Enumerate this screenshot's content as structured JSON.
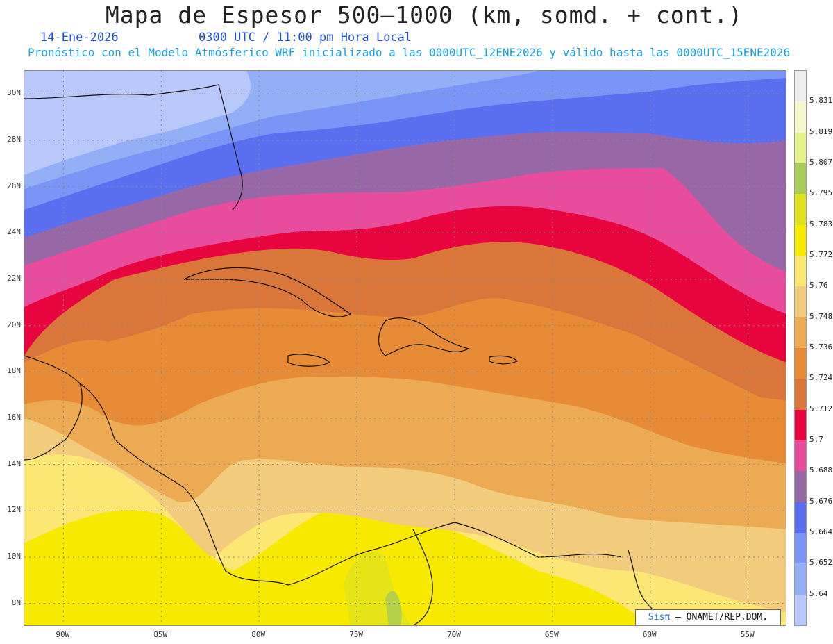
{
  "header": {
    "title": "Mapa de Espesor 500—1000 (km, somd. + cont.)",
    "date": "14-Ene-2026",
    "time": "0300 UTC / 11:00 pm Hora Local",
    "forecast_note": "Pronóstico con el Modelo Atmósferico WRF inicializado a las 0000UTC_12ENE2026 y válido hasta las  0000UTC_15ENE2026"
  },
  "map": {
    "lon_range": [
      -92,
      -53
    ],
    "lat_range": [
      7,
      31
    ],
    "lat_labels": [
      "30N",
      "28N",
      "26N",
      "24N",
      "22N",
      "20N",
      "18N",
      "16N",
      "14N",
      "12N",
      "10N",
      "8N"
    ],
    "lat_values": [
      30,
      28,
      26,
      24,
      22,
      20,
      18,
      16,
      14,
      12,
      10,
      8
    ],
    "lon_labels": [
      "90W",
      "85W",
      "80W",
      "75W",
      "70W",
      "65W",
      "60W",
      "55W"
    ],
    "lon_values": [
      -90,
      -85,
      -80,
      -75,
      -70,
      -65,
      -60,
      -55
    ],
    "grid": true
  },
  "colorbar": {
    "labels": [
      "5.831",
      "5.819",
      "5.807",
      "5.795",
      "5.783",
      "5.772",
      "5.76",
      "5.748",
      "5.736",
      "5.724",
      "5.712",
      "5.7",
      "5.688",
      "5.676",
      "5.664",
      "5.652",
      "5.64"
    ],
    "colors": [
      "#eeeeee",
      "#f4f8cc",
      "#e4f28e",
      "#a9cb59",
      "#dfe21c",
      "#f7ea00",
      "#fde774",
      "#f2cc7c",
      "#ecaa52",
      "#e78b36",
      "#db763a",
      "#e8053f",
      "#e84c9d",
      "#9868a6",
      "#5a6ef0",
      "#7a95f5",
      "#93b0f7",
      "#b8c8fb"
    ]
  },
  "footer": {
    "logo_text": "Sisπ",
    "credit": "– ONAMET/REP.DOM."
  }
}
